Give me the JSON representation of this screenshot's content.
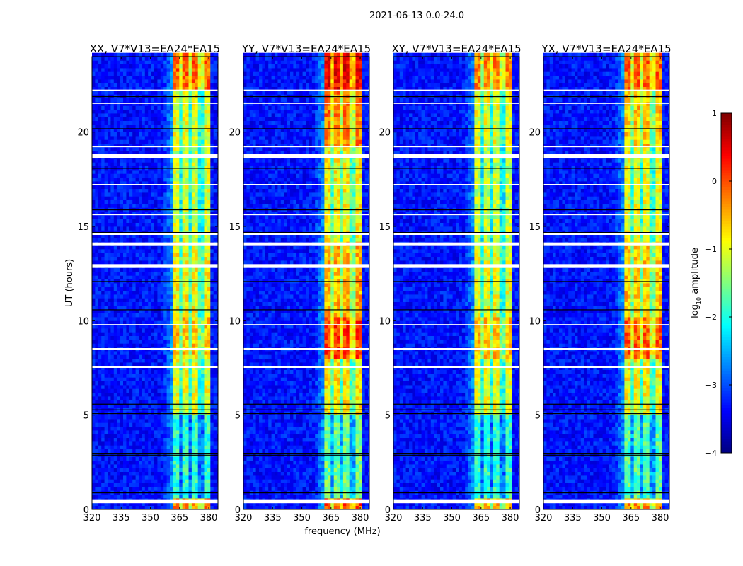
{
  "chart_data": {
    "type": "heatmap",
    "suptitle": "2021-06-13 0.0-24.0",
    "xlabel": "frequency (MHz)",
    "ylabel": "UT (hours)",
    "xlim": [
      320,
      384.7
    ],
    "ylim": [
      0,
      24
    ],
    "xticks": [
      320,
      335,
      350,
      365,
      380
    ],
    "yticks": [
      0,
      5,
      10,
      15,
      20
    ],
    "colorbar": {
      "label": "log10 amplitude",
      "label_base": "log",
      "label_sub": "10",
      "label_rest": " amplitude",
      "vmin": -4,
      "vmax": 1,
      "ticks": [
        -4,
        -3,
        -2,
        -1,
        0,
        1
      ],
      "tick_labels": [
        "−4",
        "−3",
        "−2",
        "−1",
        "0",
        "1"
      ],
      "colormap": "jet"
    },
    "background_level": -3.3,
    "band_range_mhz": [
      361,
      380.5
    ],
    "band_gaps_mhz": [
      366,
      371,
      376
    ],
    "flagged_hours": [
      [
        0.33,
        0.5
      ],
      [
        7.5,
        7.6
      ],
      [
        8.45,
        8.55
      ],
      [
        9.75,
        9.82
      ],
      [
        12.8,
        13.0
      ],
      [
        14.0,
        14.15
      ],
      [
        14.55,
        14.65
      ],
      [
        15.6,
        15.65
      ],
      [
        17.2,
        17.25
      ],
      [
        18.6,
        18.85
      ],
      [
        19.2,
        19.25
      ],
      [
        21.5,
        21.55
      ],
      [
        22.2,
        22.25
      ]
    ],
    "dark_hours": [
      0.9,
      2.9,
      3.0,
      5.1,
      5.3,
      5.6,
      10.6,
      12.1,
      14.7,
      15.9,
      18.1,
      20.2,
      21.9
    ],
    "panels": [
      {
        "title": "XX, V7*V13=EA24*EA15",
        "band_levels": [
          [
            0,
            0.5,
            -0.3
          ],
          [
            0.5,
            5,
            -1.9
          ],
          [
            5,
            8,
            -1.0
          ],
          [
            8,
            10,
            -0.6
          ],
          [
            10,
            14,
            -0.9
          ],
          [
            14,
            19,
            -1.1
          ],
          [
            19,
            22,
            -1.0
          ],
          [
            22,
            24,
            -0.1
          ]
        ]
      },
      {
        "title": "YY, V7*V13=EA24*EA15",
        "band_levels": [
          [
            0,
            0.5,
            0.0
          ],
          [
            0.5,
            5,
            -1.6
          ],
          [
            5,
            8,
            -0.8
          ],
          [
            8,
            10,
            0.1
          ],
          [
            10,
            14,
            -0.5
          ],
          [
            14,
            19,
            -0.9
          ],
          [
            19,
            22,
            -0.2
          ],
          [
            22,
            24,
            0.4
          ]
        ]
      },
      {
        "title": "XY, V7*V13=EA24*EA15",
        "band_levels": [
          [
            0,
            0.5,
            -0.5
          ],
          [
            0.5,
            5,
            -1.9
          ],
          [
            5,
            8,
            -1.0
          ],
          [
            8,
            10,
            -0.6
          ],
          [
            10,
            14,
            -1.0
          ],
          [
            14,
            19,
            -1.2
          ],
          [
            19,
            22,
            -1.0
          ],
          [
            22,
            24,
            -0.3
          ]
        ]
      },
      {
        "title": "YX, V7*V13=EA24*EA15",
        "band_levels": [
          [
            0,
            0.5,
            -0.3
          ],
          [
            0.5,
            5,
            -1.7
          ],
          [
            5,
            8,
            -0.9
          ],
          [
            8,
            10,
            -0.1
          ],
          [
            10,
            14,
            -0.6
          ],
          [
            14,
            19,
            -1.0
          ],
          [
            19,
            22,
            -0.6
          ],
          [
            22,
            24,
            -0.1
          ]
        ]
      }
    ]
  }
}
